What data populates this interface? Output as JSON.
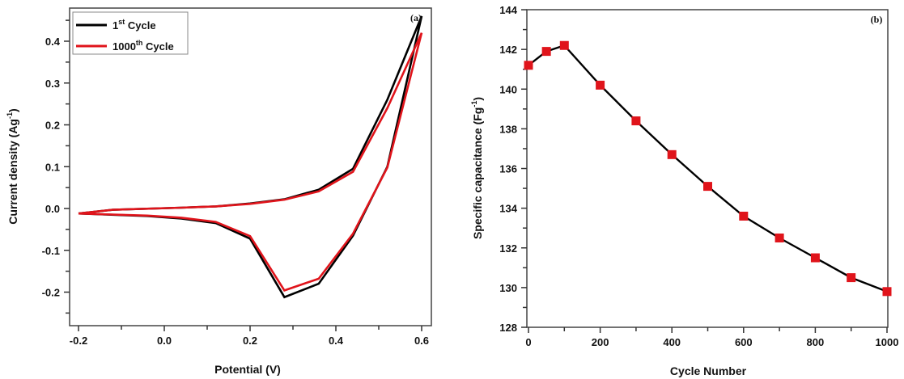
{
  "chart_data": [
    {
      "type": "line",
      "panel_label": "(a)",
      "xlabel": "Potential (V)",
      "ylabel_main": "Current density (Ag",
      "ylabel_sup": "-1",
      "ylabel_close": ")",
      "xlim": [
        -0.22,
        0.62
      ],
      "ylim": [
        -0.27,
        0.48
      ],
      "xticks": [
        -0.2,
        0.0,
        0.2,
        0.4,
        0.6
      ],
      "xtick_labels": [
        "-0.2",
        "0.0",
        "0.2",
        "0.4",
        "0.6"
      ],
      "yticks": [
        -0.2,
        -0.1,
        0.0,
        0.1,
        0.2,
        0.3,
        0.4
      ],
      "ytick_labels": [
        "-0.2",
        "-0.1",
        "0.0",
        "0.1",
        "0.2",
        "0.3",
        "0.4"
      ],
      "grid": false,
      "legend_position": "top-left",
      "series": [
        {
          "name_main": "1",
          "name_sup": "st",
          "name_rest": " Cycle",
          "color": "#000000",
          "x": [
            -0.2,
            -0.12,
            0.04,
            0.12,
            0.2,
            0.28,
            0.36,
            0.44,
            0.52,
            0.6,
            0.52,
            0.44,
            0.36,
            0.28,
            0.2,
            0.12,
            0.04,
            -0.04,
            -0.2
          ],
          "y": [
            -0.012,
            -0.003,
            0.002,
            0.005,
            0.012,
            0.022,
            0.045,
            0.095,
            0.26,
            0.46,
            0.1,
            -0.065,
            -0.18,
            -0.212,
            -0.072,
            -0.035,
            -0.024,
            -0.018,
            -0.012
          ]
        },
        {
          "name_main": "1000",
          "name_sup": "th",
          "name_rest": " Cycle",
          "color": "#e0141b",
          "x": [
            -0.2,
            -0.12,
            0.04,
            0.12,
            0.2,
            0.28,
            0.36,
            0.44,
            0.52,
            0.6,
            0.52,
            0.44,
            0.36,
            0.28,
            0.2,
            0.12,
            0.04,
            -0.04,
            -0.2
          ],
          "y": [
            -0.012,
            -0.003,
            0.002,
            0.005,
            0.011,
            0.021,
            0.041,
            0.088,
            0.24,
            0.42,
            0.098,
            -0.06,
            -0.168,
            -0.196,
            -0.066,
            -0.032,
            -0.022,
            -0.017,
            -0.012
          ]
        }
      ]
    },
    {
      "type": "line",
      "panel_label": "(b)",
      "xlabel": "Cycle Number",
      "ylabel_main": "Specific capacitance (Fg",
      "ylabel_sup": "-1",
      "ylabel_close": ")",
      "xlim": [
        0,
        1000
      ],
      "ylim": [
        128,
        144
      ],
      "xticks": [
        0,
        200,
        400,
        600,
        800,
        1000
      ],
      "xtick_labels": [
        "0",
        "200",
        "400",
        "600",
        "800",
        "1000"
      ],
      "yticks": [
        128,
        130,
        132,
        134,
        136,
        138,
        140,
        142,
        144
      ],
      "ytick_labels": [
        "128",
        "130",
        "132",
        "134",
        "136",
        "138",
        "140",
        "142",
        "144"
      ],
      "grid": false,
      "series": [
        {
          "name": "Specific capacitance",
          "line_color": "#000000",
          "marker_color": "#e0141b",
          "marker": "square",
          "x": [
            0,
            50,
            100,
            200,
            300,
            400,
            500,
            600,
            700,
            800,
            900,
            1000
          ],
          "y": [
            141.2,
            141.9,
            142.2,
            140.2,
            138.4,
            136.7,
            135.1,
            133.6,
            132.5,
            131.5,
            130.5,
            129.8
          ]
        }
      ]
    }
  ]
}
